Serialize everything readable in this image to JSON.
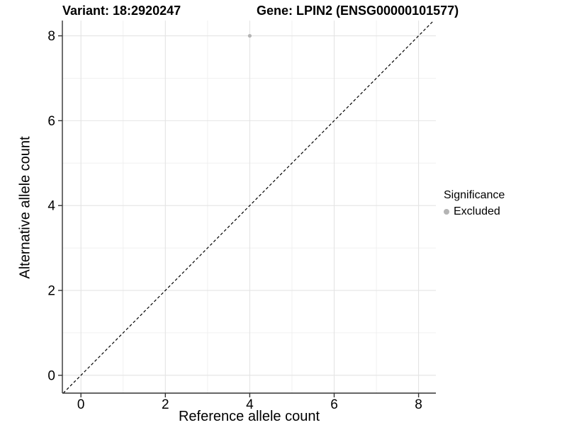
{
  "header": {
    "variant_title": "Variant: 18:2920247",
    "gene_title": "Gene: LPIN2 (ENSG00000101577)"
  },
  "chart_data": {
    "type": "scatter",
    "title": "Variant: 18:2920247  |  Gene: LPIN2 (ENSG00000101577)",
    "xlabel": "Reference allele count",
    "ylabel": "Alternative allele count",
    "xlim": [
      -0.44,
      8.41
    ],
    "ylim": [
      -0.42,
      8.36
    ],
    "x_ticks": [
      0,
      2,
      4,
      6,
      8
    ],
    "y_ticks": [
      0,
      2,
      4,
      6,
      8
    ],
    "x_minor_ticks": [
      1,
      3,
      5,
      7
    ],
    "y_minor_ticks": [
      1,
      3,
      5,
      7
    ],
    "grid": "on",
    "series": [
      {
        "name": "Excluded",
        "marker": "circle",
        "color": "#b4b4b4",
        "points": [
          {
            "x": 4,
            "y": 8
          }
        ]
      }
    ],
    "identity_line": {
      "style": "dashed",
      "color": "#000000",
      "from": -0.42,
      "to": 8.36
    },
    "legend": {
      "title": "Significance",
      "position": "right",
      "items": [
        {
          "label": "Excluded",
          "color": "#b4b4b4"
        }
      ]
    },
    "colors": {
      "axis": "#333333",
      "grid_major": "#e4e4e4",
      "grid_minor": "#f0f0f0",
      "text": "#000000",
      "background": "#ffffff"
    }
  }
}
